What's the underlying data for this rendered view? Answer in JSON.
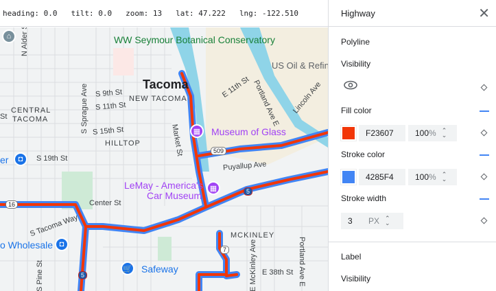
{
  "status": {
    "heading": "heading: 0.0",
    "tilt": "tilt: 0.0",
    "zoom": "zoom: 13",
    "lat": "lat: 47.222",
    "lng": "lng: -122.510"
  },
  "map": {
    "labels": {
      "city": "Tacoma",
      "new_tacoma": "NEW TACOMA",
      "central": "CENTRAL",
      "central2": "TACOMA",
      "hilltop": "HILLTOP",
      "mckinley": "MCKINLEY",
      "alder": "N Alder St",
      "s9": "S 9th St",
      "s11": "S 11th St",
      "s15": "S 15th St",
      "s19": "S 19th St",
      "sprague": "S Sprague Ave",
      "market": "Market St",
      "e11": "E 11th St",
      "portland": "Portland Ave E",
      "portland2": "Portland Ave E",
      "lincoln": "Lincoln Ave",
      "puyallup": "Puyallup Ave",
      "center": "Center St",
      "tacomaway": "S Tacoma Way",
      "pine": "S Pine St",
      "mckinleyave": "E McKinley Ave",
      "e38": "E 38th St",
      "st": "St"
    },
    "pois": {
      "conservatory": "WW Seymour Botanical Conservatory",
      "museum_glass": "Museum of Glass",
      "lemay1": "LeMay - America's",
      "lemay2": "Car Museum",
      "usoil": "US Oil & Refin",
      "wholesale": "o Wholesale",
      "er": "er",
      "safeway": "Safeway"
    },
    "shields": {
      "r509": "509",
      "r16": "16",
      "r7": "7",
      "i5a": "5",
      "i5b": "5"
    },
    "colors": {
      "fill": "#F23607",
      "stroke": "#4285F4",
      "water": "#8fd4e8"
    }
  },
  "panel": {
    "title": "Highway",
    "polyline": "Polyline",
    "visibility": "Visibility",
    "fill_color": "Fill color",
    "fill_hex": "F23607",
    "fill_opacity": "100",
    "stroke_color": "Stroke color",
    "stroke_hex": "4285F4",
    "stroke_opacity": "100",
    "pct": "%",
    "stroke_width": "Stroke width",
    "width_value": "3",
    "width_unit": "PX",
    "label": "Label",
    "label_visibility": "Visibility"
  }
}
